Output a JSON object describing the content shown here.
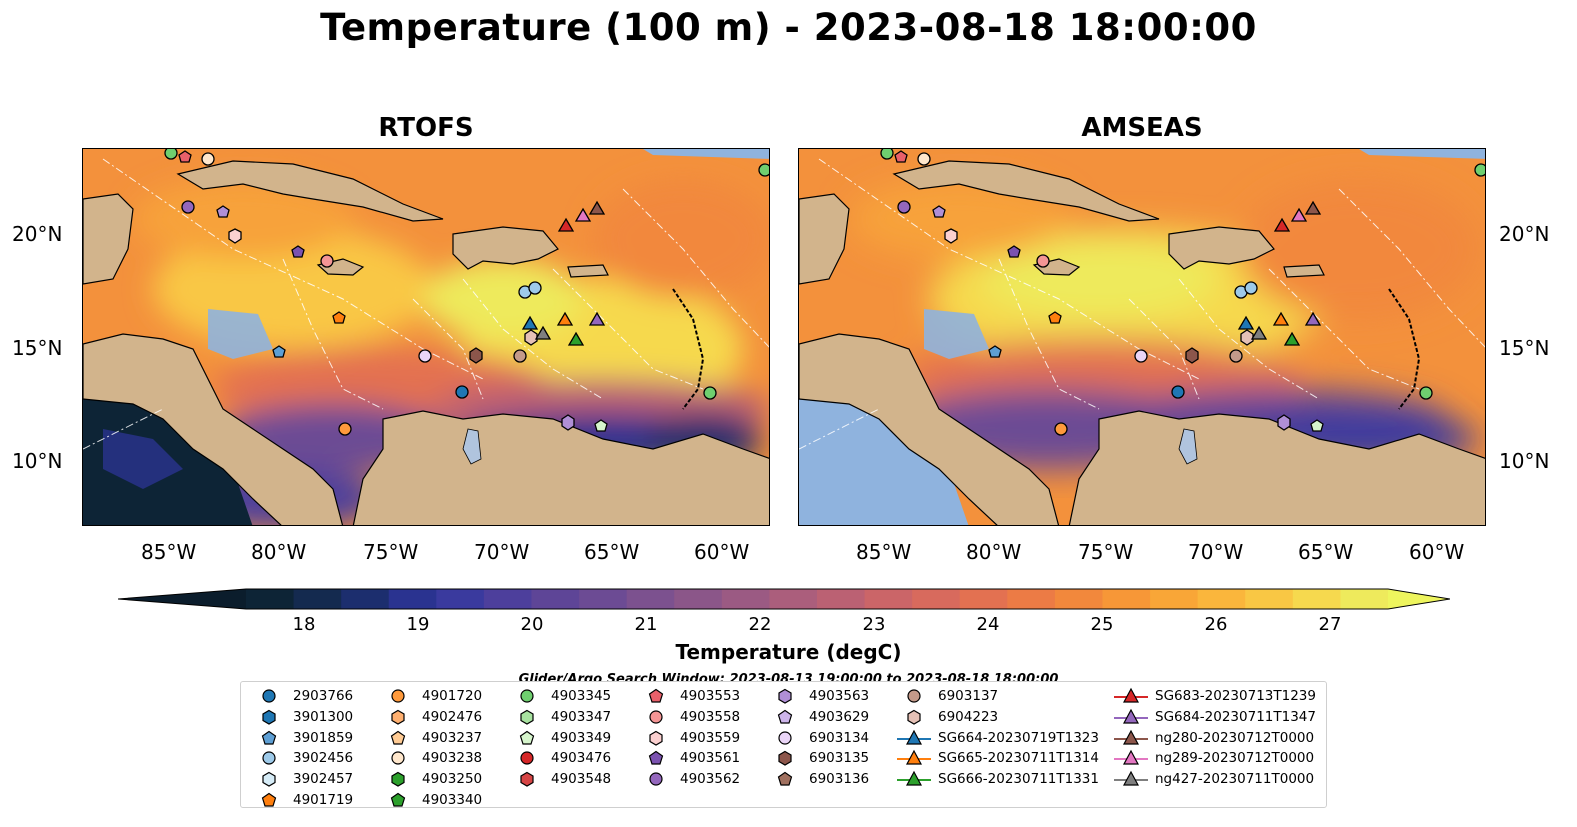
{
  "title": "Temperature (100 m) - 2023-08-18 18:00:00",
  "panels": [
    {
      "title": "RTOFS"
    },
    {
      "title": "AMSEAS"
    }
  ],
  "axes": {
    "lat_labels": [
      "20°N",
      "15°N",
      "10°N"
    ],
    "lon_labels": [
      "85°W",
      "80°W",
      "75°W",
      "70°W",
      "65°W",
      "60°W"
    ]
  },
  "colorbar": {
    "label": "Temperature (degC)",
    "ticks": [
      "18",
      "19",
      "20",
      "21",
      "22",
      "23",
      "24",
      "25",
      "26",
      "27"
    ],
    "range": [
      18,
      27
    ],
    "colors": [
      "#0d2436",
      "#142a4f",
      "#1c2e6e",
      "#2a3390",
      "#3a3a9e",
      "#4d3f9c",
      "#5e4597",
      "#6c4b94",
      "#7c518f",
      "#8b5689",
      "#9b5a83",
      "#ab5e7c",
      "#bb6173",
      "#cb6568",
      "#d86a5d",
      "#e37151",
      "#ec7b45",
      "#f2883c",
      "#f79737",
      "#f9a637",
      "#fab63c",
      "#f9c744",
      "#f6d94e",
      "#eeea5c"
    ]
  },
  "legend": {
    "note": "Glider/Argo Search Window: 2023-08-13 19:00:00 to 2023-08-18 18:00:00",
    "columns": [
      [
        {
          "label": "2903766",
          "marker": "circle",
          "color": "#1f77b4"
        },
        {
          "label": "3901300",
          "marker": "hexagon",
          "color": "#1f77b4"
        },
        {
          "label": "3901859",
          "marker": "pentagon",
          "color": "#5e9fd4"
        },
        {
          "label": "3902456",
          "marker": "circle",
          "color": "#9ecae9"
        },
        {
          "label": "3902457",
          "marker": "hexagon",
          "color": "#d6ecf7"
        },
        {
          "label": "4901719",
          "marker": "pentagon",
          "color": "#ff7f0e"
        }
      ],
      [
        {
          "label": "4901720",
          "marker": "circle",
          "color": "#ff9a3c"
        },
        {
          "label": "4902476",
          "marker": "hexagon",
          "color": "#ffb070"
        },
        {
          "label": "4903237",
          "marker": "pentagon",
          "color": "#ffcb94"
        },
        {
          "label": "4903238",
          "marker": "circle",
          "color": "#ffe7cc"
        },
        {
          "label": "4903250",
          "marker": "hexagon",
          "color": "#2ca02c"
        },
        {
          "label": "4903340",
          "marker": "pentagon",
          "color": "#2ca02c"
        }
      ],
      [
        {
          "label": "4903345",
          "marker": "circle",
          "color": "#6fcf6f"
        },
        {
          "label": "4903347",
          "marker": "hexagon",
          "color": "#a8e2a0"
        },
        {
          "label": "4903349",
          "marker": "pentagon",
          "color": "#d6f5cc"
        },
        {
          "label": "4903476",
          "marker": "circle",
          "color": "#d62728"
        },
        {
          "label": "4903548",
          "marker": "hexagon",
          "color": "#d64545"
        }
      ],
      [
        {
          "label": "4903553",
          "marker": "pentagon",
          "color": "#e8606a"
        },
        {
          "label": "4903558",
          "marker": "circle",
          "color": "#f49595"
        },
        {
          "label": "4903559",
          "marker": "hexagon",
          "color": "#fbd0d0"
        },
        {
          "label": "4903561",
          "marker": "pentagon",
          "color": "#7b52b0"
        },
        {
          "label": "4903562",
          "marker": "circle",
          "color": "#9467bd"
        }
      ],
      [
        {
          "label": "4903563",
          "marker": "hexagon",
          "color": "#b08fd6"
        },
        {
          "label": "4903629",
          "marker": "pentagon",
          "color": "#cdb5ea"
        },
        {
          "label": "6903134",
          "marker": "circle",
          "color": "#ead5f7"
        },
        {
          "label": "6903135",
          "marker": "hexagon",
          "color": "#8c564b"
        },
        {
          "label": "6903136",
          "marker": "pentagon",
          "color": "#a0705f"
        }
      ],
      [
        {
          "label": "6903137",
          "marker": "circle",
          "color": "#c49a8a"
        },
        {
          "label": "6904223",
          "marker": "hexagon",
          "color": "#e5c1b6"
        },
        {
          "label": "SG664-20230719T1323",
          "marker": "triangle-line",
          "color": "#1f77b4"
        },
        {
          "label": "SG665-20230711T1314",
          "marker": "triangle-line",
          "color": "#ff7f0e"
        },
        {
          "label": "SG666-20230711T1331",
          "marker": "triangle-line",
          "color": "#2ca02c"
        }
      ],
      [
        {
          "label": "SG683-20230713T1239",
          "marker": "triangle-line",
          "color": "#d62728"
        },
        {
          "label": "SG684-20230711T1347",
          "marker": "triangle-line",
          "color": "#9467bd"
        },
        {
          "label": "ng280-20230712T0000",
          "marker": "triangle-line",
          "color": "#8c564b"
        },
        {
          "label": "ng289-20230712T0000",
          "marker": "triangle-line",
          "color": "#e377c2"
        },
        {
          "label": "ng427-20230711T0000",
          "marker": "triangle-line",
          "color": "#7f7f7f"
        }
      ]
    ]
  }
}
